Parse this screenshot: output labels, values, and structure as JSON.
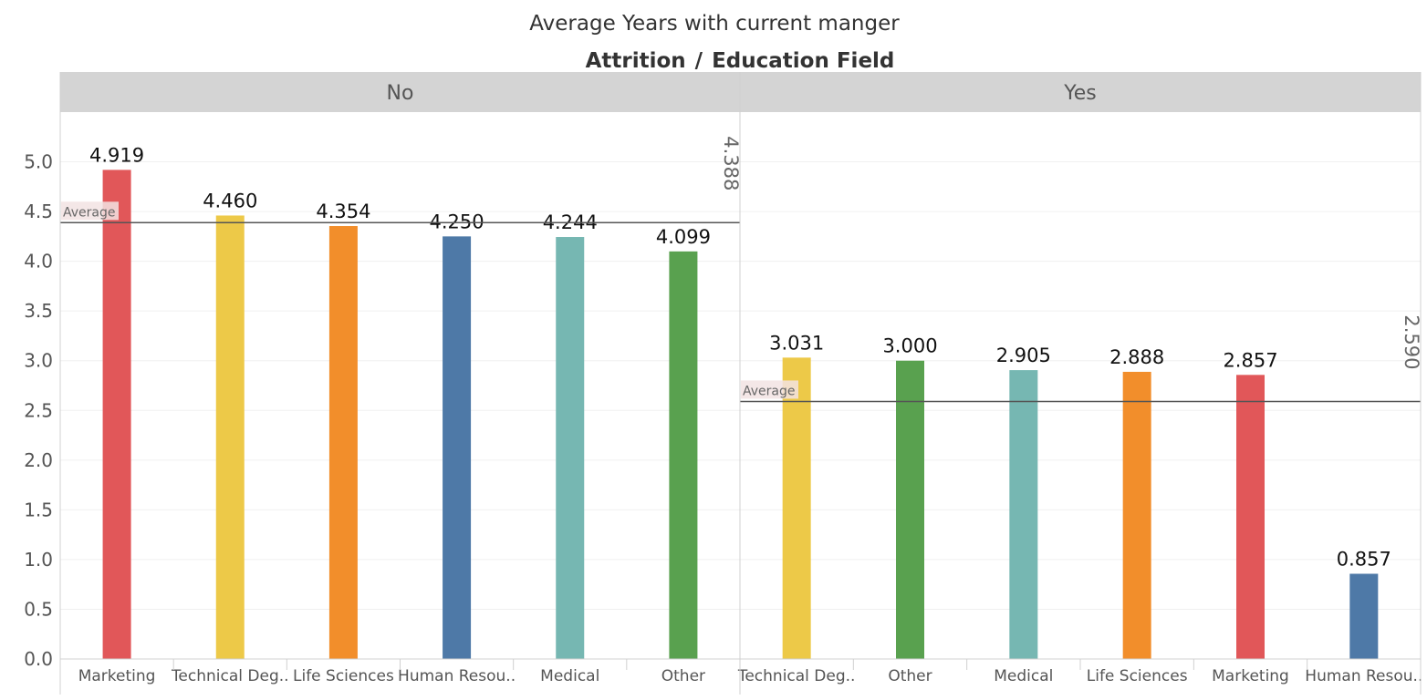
{
  "chart_data": {
    "type": "bar",
    "title": "Average Years with current manger",
    "header_outer": "Attrition",
    "header_sep": "/",
    "header_inner": "Education Field",
    "ylabel": "",
    "ylim": [
      0,
      5.5
    ],
    "yticks": [
      "0.0",
      "0.5",
      "1.0",
      "1.5",
      "2.0",
      "2.5",
      "3.0",
      "3.5",
      "4.0",
      "4.5",
      "5.0"
    ],
    "grid": true,
    "reference_line_label": "Average",
    "panels": [
      {
        "name": "No",
        "average": 4.388,
        "average_label": "4.388",
        "bars": [
          {
            "category": "Marketing",
            "value": 4.919,
            "label": "4.919",
            "color": "#e15759"
          },
          {
            "category": "Technical Deg..",
            "value": 4.46,
            "label": "4.460",
            "color": "#edc948"
          },
          {
            "category": "Life Sciences",
            "value": 4.354,
            "label": "4.354",
            "color": "#f28e2b"
          },
          {
            "category": "Human Resou..",
            "value": 4.25,
            "label": "4.250",
            "color": "#4e79a7"
          },
          {
            "category": "Medical",
            "value": 4.244,
            "label": "4.244",
            "color": "#76b7b2"
          },
          {
            "category": "Other",
            "value": 4.099,
            "label": "4.099",
            "color": "#59a14f"
          }
        ]
      },
      {
        "name": "Yes",
        "average": 2.59,
        "average_label": "2.590",
        "bars": [
          {
            "category": "Technical Deg..",
            "value": 3.031,
            "label": "3.031",
            "color": "#edc948"
          },
          {
            "category": "Other",
            "value": 3.0,
            "label": "3.000",
            "color": "#59a14f"
          },
          {
            "category": "Medical",
            "value": 2.905,
            "label": "2.905",
            "color": "#76b7b2"
          },
          {
            "category": "Life Sciences",
            "value": 2.888,
            "label": "2.888",
            "color": "#f28e2b"
          },
          {
            "category": "Marketing",
            "value": 2.857,
            "label": "2.857",
            "color": "#e15759"
          },
          {
            "category": "Human Resou..",
            "value": 0.857,
            "label": "0.857",
            "color": "#4e79a7"
          }
        ]
      }
    ]
  }
}
